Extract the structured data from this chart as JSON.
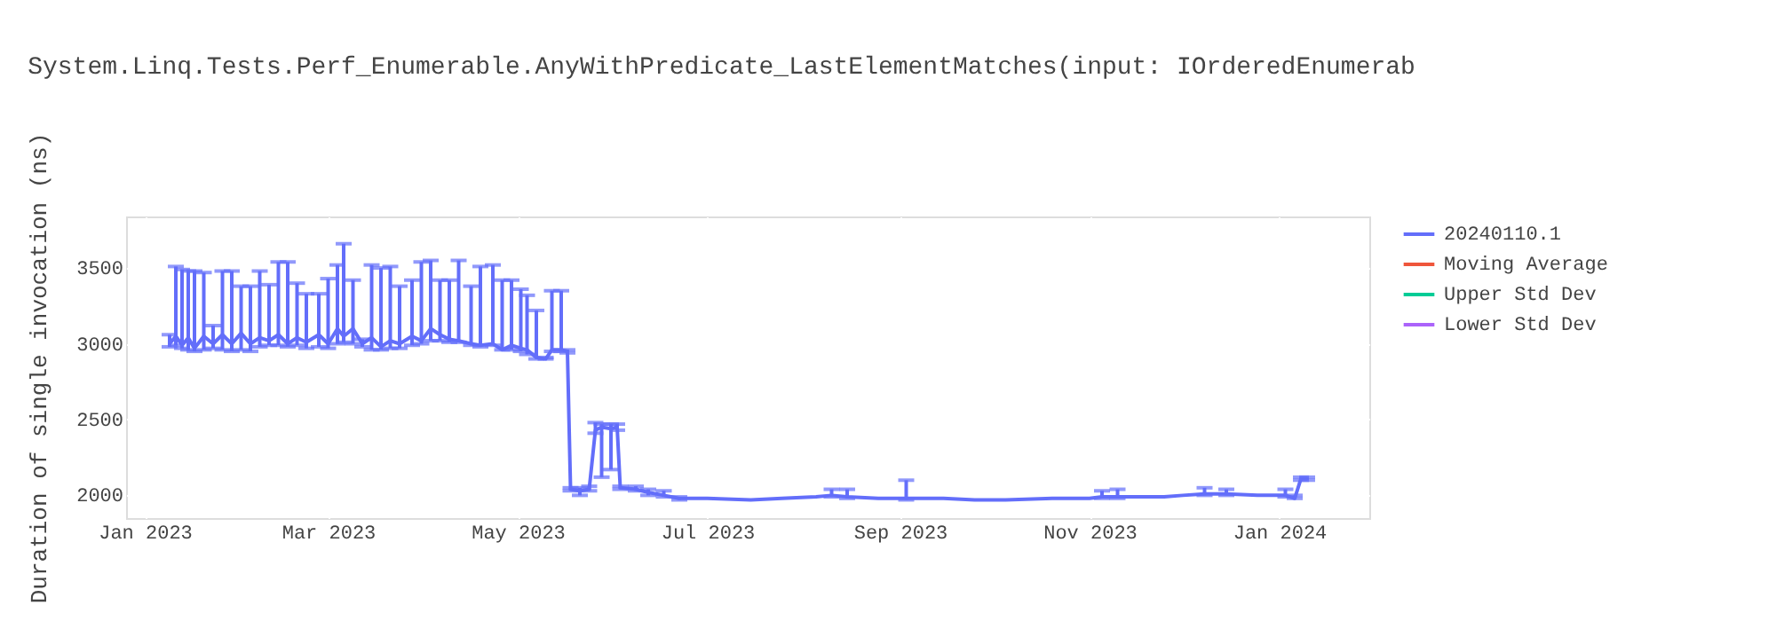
{
  "chart_data": {
    "type": "line",
    "title": "System.Linq.Tests.Perf_Enumerable.AnyWithPredicate_LastElementMatches(input: IOrderedEnumerab",
    "ylabel": "Duration of single invocation (ns)",
    "x": [
      "2023-01-09",
      "2023-01-11",
      "2023-01-13",
      "2023-01-15",
      "2023-01-17",
      "2023-01-20",
      "2023-01-23",
      "2023-01-26",
      "2023-01-29",
      "2023-02-01",
      "2023-02-04",
      "2023-02-07",
      "2023-02-10",
      "2023-02-13",
      "2023-02-16",
      "2023-02-19",
      "2023-02-22",
      "2023-02-26",
      "2023-03-01",
      "2023-03-04",
      "2023-03-06",
      "2023-03-09",
      "2023-03-12",
      "2023-03-15",
      "2023-03-18",
      "2023-03-21",
      "2023-03-24",
      "2023-03-28",
      "2023-03-31",
      "2023-04-03",
      "2023-04-06",
      "2023-04-09",
      "2023-04-12",
      "2023-04-16",
      "2023-04-19",
      "2023-04-23",
      "2023-04-26",
      "2023-04-29",
      "2023-05-02",
      "2023-05-04",
      "2023-05-07",
      "2023-05-10",
      "2023-05-12",
      "2023-05-15",
      "2023-05-17",
      "2023-05-18",
      "2023-05-21",
      "2023-05-24",
      "2023-05-26",
      "2023-05-28",
      "2023-05-31",
      "2023-06-02",
      "2023-06-03",
      "2023-06-08",
      "2023-06-12",
      "2023-06-17",
      "2023-06-22",
      "2023-07-01",
      "2023-07-15",
      "2023-07-25",
      "2023-08-05",
      "2023-08-10",
      "2023-08-15",
      "2023-08-25",
      "2023-09-03",
      "2023-09-15",
      "2023-09-25",
      "2023-10-05",
      "2023-10-20",
      "2023-11-01",
      "2023-11-05",
      "2023-11-10",
      "2023-11-25",
      "2023-12-01",
      "2023-12-08",
      "2023-12-15",
      "2023-12-25",
      "2024-01-03",
      "2024-01-06",
      "2024-01-08",
      "2024-01-10"
    ],
    "series": [
      {
        "name": "20240110.1",
        "color": "#636efa",
        "values": [
          3000,
          3050,
          2990,
          3040,
          2970,
          3050,
          3000,
          3060,
          3000,
          3070,
          3000,
          3040,
          3020,
          3060,
          3000,
          3040,
          3010,
          3060,
          3000,
          3100,
          3050,
          3100,
          3000,
          3040,
          2980,
          3020,
          3000,
          3050,
          3020,
          3100,
          3060,
          3030,
          3020,
          3000,
          2990,
          3000,
          2960,
          2990,
          2970,
          2960,
          2910,
          2900,
          2960,
          2960,
          2950,
          2040,
          2030,
          2040,
          2430,
          2450,
          2440,
          2450,
          2050,
          2040,
          2020,
          2000,
          1980,
          1980,
          1970,
          1980,
          1990,
          2000,
          1990,
          1980,
          1980,
          1980,
          1970,
          1970,
          1980,
          1980,
          1990,
          1990,
          1990,
          2000,
          2010,
          2010,
          2000,
          2000,
          1980,
          2110,
          2110
        ],
        "errors": [
          [
            2980,
            3060
          ],
          [
            2990,
            3510
          ],
          [
            2970,
            3490
          ],
          [
            2960,
            3480
          ],
          [
            2950,
            3480
          ],
          [
            2960,
            3470
          ],
          [
            2970,
            3120
          ],
          [
            2960,
            3480
          ],
          [
            2950,
            3480
          ],
          [
            2960,
            3380
          ],
          [
            2950,
            3380
          ],
          [
            2980,
            3480
          ],
          [
            2990,
            3390
          ],
          [
            2990,
            3540
          ],
          [
            2980,
            3540
          ],
          [
            2990,
            3400
          ],
          [
            2970,
            3330
          ],
          [
            2980,
            3330
          ],
          [
            2970,
            3430
          ],
          [
            3000,
            3520
          ],
          [
            3010,
            3660
          ],
          [
            3000,
            3420
          ],
          [
            2980,
            3030
          ],
          [
            2960,
            3520
          ],
          [
            2960,
            3500
          ],
          [
            2970,
            3510
          ],
          [
            2970,
            3380
          ],
          [
            2990,
            3420
          ],
          [
            3000,
            3540
          ],
          [
            3020,
            3550
          ],
          [
            3020,
            3420
          ],
          [
            3010,
            3420
          ],
          [
            3010,
            3550
          ],
          [
            2990,
            3380
          ],
          [
            2980,
            3510
          ],
          [
            2990,
            3520
          ],
          [
            2960,
            3420
          ],
          [
            2960,
            3420
          ],
          [
            2950,
            3360
          ],
          [
            2930,
            3320
          ],
          [
            2900,
            3220
          ],
          [
            2900,
            2910
          ],
          [
            2950,
            3350
          ],
          [
            2950,
            3350
          ],
          [
            2940,
            2960
          ],
          [
            2030,
            2050
          ],
          [
            2000,
            2050
          ],
          [
            2030,
            2060
          ],
          [
            2410,
            2480
          ],
          [
            2120,
            2470
          ],
          [
            2170,
            2470
          ],
          [
            2430,
            2470
          ],
          [
            2040,
            2060
          ],
          [
            2030,
            2060
          ],
          [
            2000,
            2040
          ],
          [
            1990,
            2030
          ],
          [
            1970,
            1990
          ],
          null,
          null,
          null,
          null,
          [
            1990,
            2040
          ],
          [
            1980,
            2040
          ],
          null,
          [
            1970,
            2100
          ],
          null,
          null,
          null,
          null,
          null,
          [
            1980,
            2030
          ],
          [
            1980,
            2040
          ],
          null,
          null,
          [
            2000,
            2050
          ],
          [
            2000,
            2040
          ],
          null,
          [
            1990,
            2040
          ],
          [
            1980,
            2000
          ],
          [
            2100,
            2120
          ],
          [
            2100,
            2120
          ]
        ]
      },
      {
        "name": "Moving Average",
        "color": "#ef553b",
        "values": [
          null,
          null,
          null,
          null,
          null,
          null,
          null,
          null,
          null,
          null,
          null,
          null,
          null,
          null,
          null,
          null,
          null,
          null,
          null,
          null,
          null,
          null,
          null,
          null,
          null,
          null,
          null,
          null,
          null,
          null,
          null,
          null,
          null,
          null,
          null,
          null,
          null,
          null,
          null,
          null,
          null,
          null,
          null,
          null,
          null,
          null,
          null,
          null,
          null,
          null,
          null,
          null,
          null,
          null,
          null,
          null,
          null,
          null,
          null,
          null,
          null,
          null,
          null,
          null,
          null,
          null,
          null,
          null,
          null,
          null,
          null,
          null,
          null,
          null,
          null,
          null,
          null,
          null,
          null,
          null,
          null
        ]
      },
      {
        "name": "Upper Std Dev",
        "color": "#00cc96",
        "values": [
          null,
          null,
          null,
          null,
          null,
          null,
          null,
          null,
          null,
          null,
          null,
          null,
          null,
          null,
          null,
          null,
          null,
          null,
          null,
          null,
          null,
          null,
          null,
          null,
          null,
          null,
          null,
          null,
          null,
          null,
          null,
          null,
          null,
          null,
          null,
          null,
          null,
          null,
          null,
          null,
          null,
          null,
          null,
          null,
          null,
          null,
          null,
          null,
          null,
          null,
          null,
          null,
          null,
          null,
          null,
          null,
          null,
          null,
          null,
          null,
          null,
          null,
          null,
          null,
          null,
          null,
          null,
          null,
          null,
          null,
          null,
          null,
          null,
          null,
          null,
          null,
          null,
          null,
          null,
          null,
          null
        ]
      },
      {
        "name": "Lower Std Dev",
        "color": "#ab63fa",
        "values": [
          null,
          null,
          null,
          null,
          null,
          null,
          null,
          null,
          null,
          null,
          null,
          null,
          null,
          null,
          null,
          null,
          null,
          null,
          null,
          null,
          null,
          null,
          null,
          null,
          null,
          null,
          null,
          null,
          null,
          null,
          null,
          null,
          null,
          null,
          null,
          null,
          null,
          null,
          null,
          null,
          null,
          null,
          null,
          null,
          null,
          null,
          null,
          null,
          null,
          null,
          null,
          null,
          null,
          null,
          null,
          null,
          null,
          null,
          null,
          null,
          null,
          null,
          null,
          null,
          null,
          null,
          null,
          null,
          null,
          null,
          null,
          null,
          null,
          null,
          null,
          null,
          null,
          null,
          null,
          null,
          null
        ]
      }
    ],
    "xlim": [
      "2022-12-26",
      "2024-01-30"
    ],
    "xticks": [
      {
        "value": "2023-01-01",
        "label": "Jan 2023"
      },
      {
        "value": "2023-03-01",
        "label": "Mar 2023"
      },
      {
        "value": "2023-05-01",
        "label": "May 2023"
      },
      {
        "value": "2023-07-01",
        "label": "Jul 2023"
      },
      {
        "value": "2023-09-01",
        "label": "Sep 2023"
      },
      {
        "value": "2023-11-01",
        "label": "Nov 2023"
      },
      {
        "value": "2024-01-01",
        "label": "Jan 2024"
      }
    ],
    "ylim": [
      1850,
      3840
    ],
    "yticks": [
      2000,
      2500,
      3000,
      3500
    ],
    "grid": true,
    "legend": "top right",
    "marker": "none",
    "line_style": "solid"
  }
}
